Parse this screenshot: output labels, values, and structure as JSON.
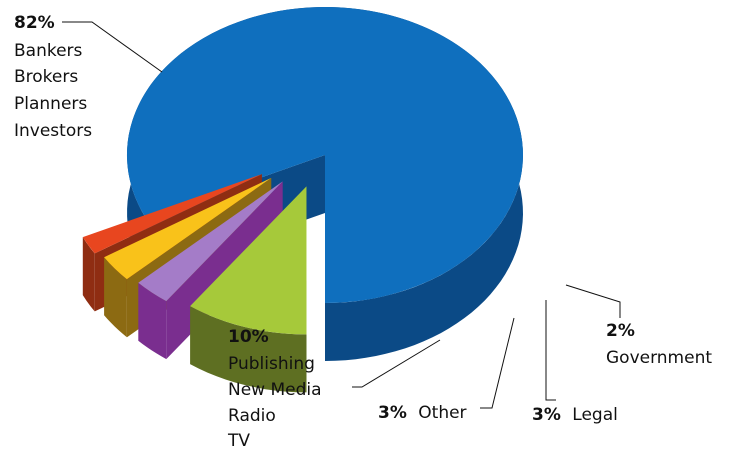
{
  "chart_data": {
    "type": "pie",
    "title": "",
    "style": "3d-exploded",
    "slices": [
      {
        "value": 82,
        "pct_label": "82%",
        "lines": [
          "Bankers",
          "Brokers",
          "Planners",
          "Investors"
        ],
        "color": "#0F6FBE",
        "side": "#0B4A86"
      },
      {
        "value": 2,
        "pct_label": "2%",
        "lines": [
          "Government"
        ],
        "color": "#E8461F",
        "side": "#8F2D12"
      },
      {
        "value": 3,
        "pct_label": "3%",
        "lines": [
          "Legal"
        ],
        "color": "#F9C21A",
        "side": "#8C6A12"
      },
      {
        "value": 3,
        "pct_label": "3%",
        "lines": [
          "Other"
        ],
        "color": "#A47CC8",
        "side": "#7A2E8F"
      },
      {
        "value": 10,
        "pct_label": "10%",
        "lines": [
          "Publishing",
          "New Media",
          "Radio",
          "TV"
        ],
        "color": "#A6C93A",
        "side": "#5E6F22"
      }
    ]
  }
}
